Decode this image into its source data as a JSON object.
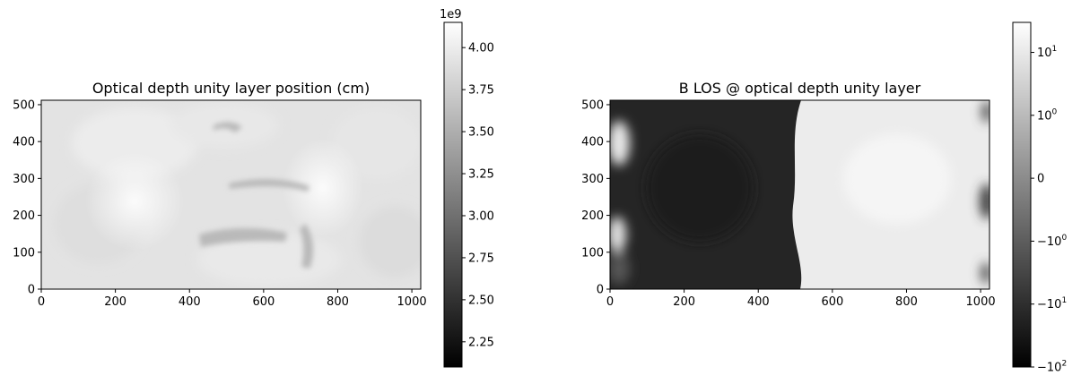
{
  "chart_data": [
    {
      "type": "heatmap",
      "title": "Optical depth unity layer position (cm)",
      "xlabel": "",
      "ylabel": "",
      "xlim": [
        0,
        1024
      ],
      "ylim": [
        0,
        512
      ],
      "x_ticks": [
        "0",
        "200",
        "400",
        "600",
        "800",
        "1000"
      ],
      "y_ticks": [
        "0",
        "100",
        "200",
        "300",
        "400",
        "500"
      ],
      "colormap": "gray",
      "colorbar": {
        "scale": "linear",
        "multiplier_label": "1e9",
        "range": [
          2.1,
          4.15
        ],
        "ticks": [
          "2.25",
          "2.50",
          "2.75",
          "3.00",
          "3.25",
          "3.50",
          "3.75",
          "4.00"
        ]
      }
    },
    {
      "type": "heatmap",
      "title": "B LOS @ optical depth unity layer",
      "xlabel": "",
      "ylabel": "",
      "xlim": [
        0,
        1024
      ],
      "ylim": [
        0,
        512
      ],
      "x_ticks": [
        "0",
        "200",
        "400",
        "600",
        "800",
        "1000"
      ],
      "y_ticks": [
        "0",
        "100",
        "200",
        "300",
        "400",
        "500"
      ],
      "colormap": "gray",
      "colorbar": {
        "scale": "symlog",
        "range": [
          -100,
          30
        ],
        "ticks": [
          {
            "base": "−10",
            "exp": "2"
          },
          {
            "base": "−10",
            "exp": "1"
          },
          {
            "base": "−10",
            "exp": "0"
          },
          {
            "base": "0",
            "exp": ""
          },
          {
            "base": "10",
            "exp": "0"
          },
          {
            "base": "10",
            "exp": "1"
          }
        ]
      }
    }
  ]
}
